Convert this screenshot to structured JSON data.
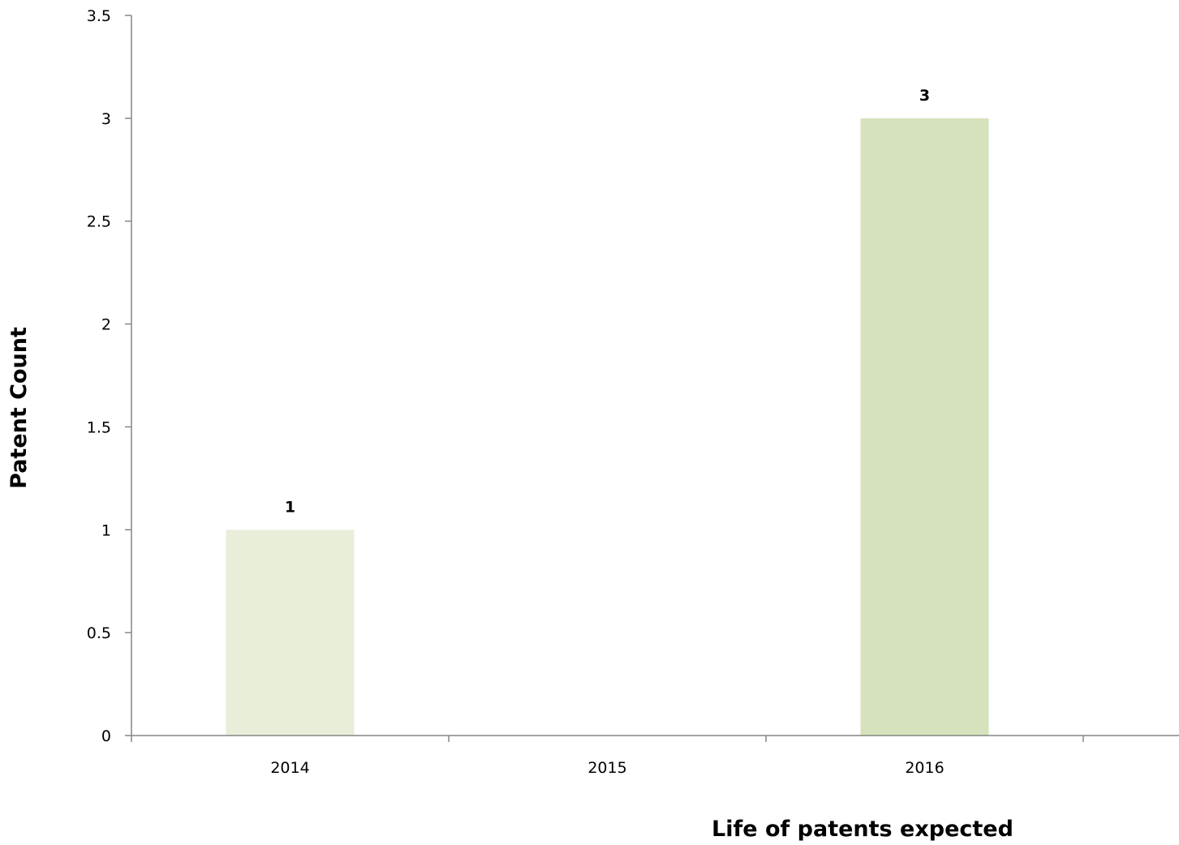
{
  "chart_data": {
    "type": "bar",
    "categories": [
      "2014",
      "2015",
      "2016"
    ],
    "values": [
      1,
      null,
      3
    ],
    "data_labels": [
      "1",
      "",
      "3"
    ],
    "bar_colors": [
      "#e9eedb",
      "#dfe6cb",
      "#d6e2bc"
    ],
    "xlabel": "Life of patents expected",
    "ylabel": "Patent Count",
    "ylim": [
      0,
      3.5
    ],
    "yticks": [
      "0",
      "0.5",
      "1",
      "1.5",
      "2",
      "2.5",
      "3",
      "3.5"
    ],
    "grid": false,
    "legend": "none"
  }
}
